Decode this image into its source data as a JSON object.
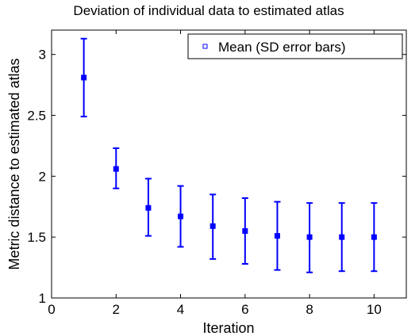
{
  "chart_data": {
    "type": "scatter",
    "title": "Deviation of individual data to estimated atlas",
    "xlabel": "Iteration",
    "ylabel": "Metric distance to estimated atlas",
    "xlim": [
      0,
      11
    ],
    "ylim": [
      1,
      3.2
    ],
    "xticks": [
      0,
      2,
      4,
      6,
      8,
      10
    ],
    "yticks": [
      1,
      1.5,
      2,
      2.5,
      3
    ],
    "xtick_labels": [
      "0",
      "2",
      "4",
      "6",
      "8",
      "10"
    ],
    "ytick_labels": [
      "1",
      "1.5",
      "2",
      "2.5",
      "3"
    ],
    "grid": false,
    "legend": {
      "position": "top-right",
      "label": "Mean (SD error bars)"
    },
    "color": "#0000ff",
    "series": [
      {
        "name": "Mean (SD error bars)",
        "x": [
          1,
          2,
          3,
          4,
          5,
          6,
          7,
          8,
          9,
          10
        ],
        "y": [
          2.81,
          2.06,
          1.74,
          1.67,
          1.59,
          1.55,
          1.51,
          1.5,
          1.5,
          1.5
        ],
        "lower": [
          2.49,
          1.9,
          1.51,
          1.42,
          1.32,
          1.28,
          1.23,
          1.21,
          1.22,
          1.22
        ],
        "upper": [
          3.13,
          2.23,
          1.98,
          1.92,
          1.85,
          1.82,
          1.79,
          1.78,
          1.78,
          1.78
        ]
      }
    ]
  }
}
